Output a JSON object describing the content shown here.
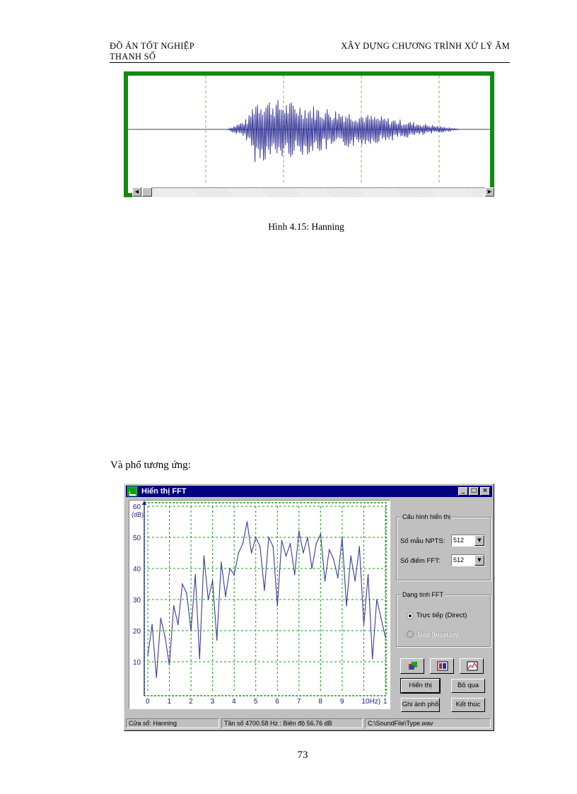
{
  "header": {
    "left": "ĐỒ ÁN TỐT NGHIỆP",
    "left2": "THANH SỐ",
    "right": "XÂY DỰNG CHƯƠNG TRÌNH XỬ LÝ ÂM"
  },
  "figure_wave": {
    "caption": "Hình 4.15: Hanning",
    "scroll_left": "◀",
    "scroll_right": "▶"
  },
  "intro_text": "Và phổ tương ứng:",
  "fft_window": {
    "title": "Hiển thị FFT",
    "btn_minimize": "_",
    "btn_maximize": "□",
    "btn_close": "×",
    "config_group": "Cấu hình hiển thị",
    "npts_label": "Số mẫu NPTS:",
    "npts_value": "512",
    "fft_label": "Số điểm FFT:",
    "fft_value": "512",
    "combo_arrow": "▼",
    "type_group": "Dạng tính FFT",
    "radio_direct": "Trực tiếp (Direct)",
    "radio_inverse": "Đảo (Inverse)",
    "btn_show": "Hiển thị",
    "btn_skip": "Bỏ qua",
    "btn_save": "Ghi ảnh phổ",
    "btn_end": "Kết thúc",
    "status_window": "Cửa sổ: Hanning",
    "status_freq": "Tần số 4700.58 Hz  :  Biên độ 56.76 dB",
    "status_file": "C:\\SoundFile\\Type.wav",
    "colors": {
      "title_bar": "#000080",
      "trace": "#3a3a9a",
      "grid": "#10a010"
    }
  },
  "chart_data": {
    "type": "line",
    "ylabel": "(dB)",
    "y_ticks": [
      "60",
      "50",
      "40",
      "30",
      "20",
      "10"
    ],
    "x_ticks": [
      "0",
      "1",
      "2",
      "3",
      "4",
      "5",
      "6",
      "7",
      "8",
      "9",
      "10Hz)",
      "1"
    ],
    "ylim": [
      0,
      60
    ],
    "xlim": [
      0,
      11
    ],
    "grid": true,
    "series": [
      {
        "x": [
          0.0,
          0.2,
          0.4,
          0.6,
          0.8,
          1.0,
          1.2,
          1.4,
          1.6,
          1.8,
          2.0,
          2.2,
          2.4,
          2.6,
          2.8,
          3.0,
          3.2,
          3.4,
          3.6,
          3.8,
          4.0,
          4.2,
          4.4,
          4.6,
          4.8,
          5.0,
          5.2,
          5.4,
          5.6,
          5.8,
          6.0,
          6.2,
          6.4,
          6.6,
          6.8,
          7.0,
          7.2,
          7.4,
          7.6,
          7.8,
          8.0,
          8.2,
          8.4,
          8.6,
          8.8,
          9.0,
          9.2,
          9.4,
          9.6,
          9.8,
          10.0,
          10.2,
          10.4,
          10.6,
          10.8,
          11.0
        ],
        "y": [
          12,
          22,
          5,
          24,
          18,
          9,
          28,
          22,
          35,
          32,
          20,
          38,
          11,
          44,
          30,
          36,
          17,
          42,
          31,
          40,
          38,
          45,
          48,
          55,
          45,
          50,
          47,
          33,
          50,
          47,
          28,
          49,
          44,
          48,
          38,
          52,
          45,
          50,
          40,
          48,
          51,
          36,
          46,
          43,
          37,
          50,
          28,
          44,
          36,
          47,
          22,
          38,
          11,
          30,
          24,
          18
        ]
      }
    ]
  }
}
